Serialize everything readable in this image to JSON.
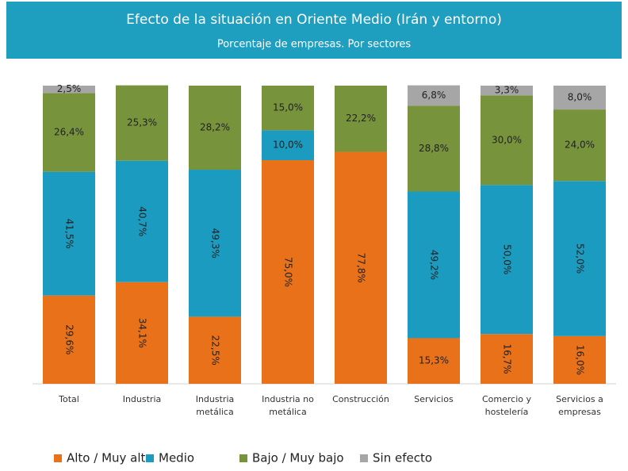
{
  "chart_data": {
    "type": "stacked_bar",
    "title": "Efecto de la situación en Oriente Medio (Irán y entorno)",
    "subtitle": "Porcentaje de empresas. Por sectores",
    "categories": [
      "Total",
      "Industria",
      "Industria metálica",
      "Industria no metálica",
      "Construcción",
      "Servicios",
      "Comercio y hostelería",
      "Servicios a empresas"
    ],
    "ylim": [
      0,
      100
    ],
    "series": [
      {
        "name": "Alto / Muy alto",
        "color": "#e8711a",
        "values": [
          29.6,
          34.1,
          22.5,
          75.0,
          77.8,
          15.3,
          16.7,
          16.0
        ],
        "value_labels": [
          "29,6%",
          "34,1%",
          "22,5%",
          "75,0%",
          "77,8%",
          "15,3%",
          "16,7%",
          "16,0%"
        ]
      },
      {
        "name": "Medio",
        "color": "#1b9bbf",
        "values": [
          41.5,
          40.7,
          49.3,
          10.0,
          null,
          49.2,
          50.0,
          52.0
        ],
        "value_labels": [
          "41,5%",
          "40,7%",
          "49,3%",
          "10,0%",
          null,
          "49,2%",
          "50,0%",
          "52,0%"
        ]
      },
      {
        "name": "Bajo / Muy bajo",
        "color": "#77933c",
        "values": [
          26.4,
          25.3,
          28.2,
          15.0,
          22.2,
          28.8,
          30.0,
          24.0
        ],
        "value_labels": [
          "26,4%",
          "25,3%",
          "28,2%",
          "15,0%",
          "22,2%",
          "28,8%",
          "30,0%",
          "24,0%"
        ]
      },
      {
        "name": "Sin efecto",
        "color": "#a6a6a6",
        "values": [
          2.5,
          null,
          null,
          null,
          null,
          6.8,
          3.3,
          8.0
        ],
        "value_labels": [
          "2,5%",
          null,
          null,
          null,
          null,
          "6,8%",
          "3,3%",
          "8,0%"
        ]
      }
    ]
  }
}
